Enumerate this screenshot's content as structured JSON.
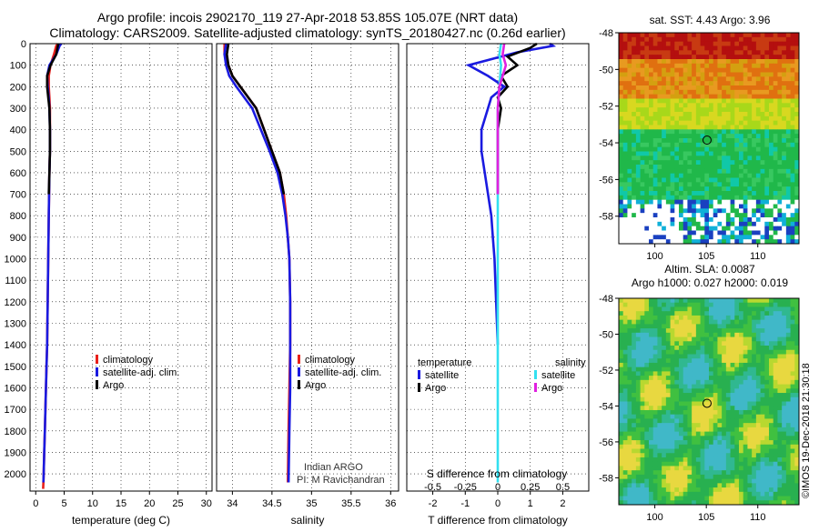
{
  "header": {
    "line1": "Argo profile: incois 2902170_119 27-Apr-2018 53.85S 105.07E (NRT data)",
    "line2": "Climatology: CARS2009. Satellite-adjusted climatology: synTS_20180427.nc (0.26d earlier)"
  },
  "colors": {
    "climatology": "#e8201a",
    "satellite": "#1a1ae0",
    "argo": "#000000",
    "sal_satellite": "#33e0f0",
    "sal_argo": "#e020e0"
  },
  "chart_data": [
    {
      "type": "line",
      "id": "temperature",
      "xlabel": "temperature (deg C)",
      "ylabel": "",
      "xlim": [
        -1,
        31
      ],
      "ylim": [
        2080,
        0
      ],
      "xticks": [
        0,
        5,
        10,
        15,
        20,
        25,
        30
      ],
      "yticks": [
        0,
        100,
        200,
        300,
        400,
        500,
        600,
        700,
        800,
        900,
        1000,
        1100,
        1200,
        1300,
        1400,
        1500,
        1600,
        1700,
        1800,
        1900,
        2000
      ],
      "legend": [
        "climatology",
        "satellite-adj. clim.",
        "Argo"
      ],
      "series": [
        {
          "name": "climatology",
          "x": [
            3.9,
            3.6,
            3.2,
            2.6,
            2.3,
            2.3,
            2.4,
            2.5,
            2.5,
            2.5,
            2.4,
            2.3,
            2.2,
            2.1,
            2.0,
            1.9,
            1.8,
            1.7,
            1.6,
            1.5,
            1.4,
            1.35,
            1.3
          ],
          "y": [
            0,
            10,
            50,
            100,
            150,
            200,
            250,
            300,
            400,
            500,
            600,
            800,
            1000,
            1200,
            1400,
            1500,
            1600,
            1700,
            1800,
            1900,
            2000,
            2040,
            2070
          ]
        },
        {
          "name": "satellite-adj. clim.",
          "x": [
            4.5,
            4.2,
            3.6,
            2.4,
            2.0,
            2.1,
            2.3,
            2.4,
            2.5,
            2.5,
            2.4,
            2.3,
            2.2,
            2.1,
            2.0,
            1.9,
            1.8,
            1.7,
            1.6,
            1.5,
            1.4,
            1.35
          ],
          "y": [
            0,
            10,
            50,
            100,
            150,
            200,
            250,
            300,
            400,
            500,
            600,
            800,
            1000,
            1200,
            1400,
            1500,
            1600,
            1700,
            1800,
            1900,
            2000,
            2040
          ]
        },
        {
          "name": "Argo",
          "x": [
            4.0,
            3.9,
            3.6,
            2.6,
            2.0,
            2.0,
            2.2,
            2.4,
            2.5,
            2.5,
            2.4,
            2.3
          ],
          "y": [
            0,
            10,
            50,
            100,
            150,
            200,
            250,
            300,
            400,
            500,
            600,
            700
          ]
        }
      ]
    },
    {
      "type": "line",
      "id": "salinity",
      "xlabel": "salinity",
      "xlim": [
        33.8,
        36.1
      ],
      "ylim": [
        2080,
        0
      ],
      "xticks": [
        34,
        34.5,
        35,
        35.5,
        36
      ],
      "legend": [
        "climatology",
        "satellite-adj. clim.",
        "Argo"
      ],
      "series": [
        {
          "name": "climatology",
          "x": [
            33.9,
            33.9,
            33.95,
            34.0,
            34.1,
            34.2,
            34.3,
            34.4,
            34.5,
            34.6,
            34.65,
            34.68,
            34.7,
            34.72,
            34.73,
            34.73,
            34.72,
            34.71,
            34.7
          ],
          "y": [
            0,
            50,
            100,
            150,
            200,
            250,
            300,
            400,
            500,
            600,
            700,
            800,
            900,
            1000,
            1200,
            1400,
            1600,
            1800,
            2040
          ]
        },
        {
          "name": "satellite-adj. clim.",
          "x": [
            33.92,
            33.9,
            33.92,
            33.96,
            34.05,
            34.15,
            34.25,
            34.36,
            34.47,
            34.57,
            34.63,
            34.67,
            34.7,
            34.72,
            34.73,
            34.73,
            34.73,
            34.72,
            34.71
          ],
          "y": [
            0,
            50,
            100,
            150,
            200,
            250,
            300,
            400,
            500,
            600,
            700,
            800,
            900,
            1000,
            1200,
            1400,
            1600,
            1800,
            2040
          ]
        },
        {
          "name": "Argo",
          "x": [
            33.95,
            33.93,
            33.95,
            34.0,
            34.1,
            34.2,
            34.3,
            34.4,
            34.5,
            34.6,
            34.65
          ],
          "y": [
            0,
            50,
            100,
            150,
            200,
            250,
            300,
            400,
            500,
            600,
            700
          ]
        }
      ]
    },
    {
      "type": "line",
      "id": "difference",
      "xlabel": "T difference from climatology",
      "xlabel_top": "S difference from climatology",
      "xlim": [
        -2.8,
        2.8
      ],
      "ylim": [
        2080,
        0
      ],
      "xticks": [
        -2,
        -1,
        0,
        1,
        2
      ],
      "xtick_labels": [
        "-2",
        "-1",
        "0",
        "1",
        "2"
      ],
      "sticks": [
        "-0.5",
        "-0.25",
        "0",
        "0.25",
        "0.5"
      ],
      "sticks_pos": [
        -2,
        -1,
        0,
        1,
        2
      ],
      "legend_left_title": "temperature",
      "legend_right_title": "salinity",
      "legend_left": [
        "satellite",
        "Argo"
      ],
      "legend_right": [
        "satellite",
        "Argo"
      ],
      "series": [
        {
          "name": "temp satellite",
          "x": [
            1.6,
            1.7,
            0.6,
            -0.9,
            -0.3,
            0.2,
            -0.2,
            -0.3,
            -0.5,
            -0.5,
            -0.4,
            -0.3,
            -0.2,
            -0.15,
            -0.1,
            -0.05,
            0
          ],
          "y": [
            0,
            10,
            40,
            100,
            150,
            200,
            250,
            300,
            400,
            500,
            600,
            700,
            800,
            900,
            1000,
            1200,
            1400
          ]
        },
        {
          "name": "temp Argo",
          "x": [
            1.2,
            1.0,
            0.3,
            0.6,
            0.1,
            0.3,
            0,
            0.1,
            0,
            0,
            0
          ],
          "y": [
            0,
            20,
            60,
            100,
            150,
            200,
            250,
            300,
            400,
            500,
            700
          ]
        },
        {
          "name": "sal satellite",
          "x": [
            0.1,
            0.05,
            0.1,
            0.05,
            0,
            0,
            0,
            0,
            0
          ],
          "y": [
            0,
            50,
            100,
            200,
            300,
            600,
            1000,
            1500,
            2040
          ]
        },
        {
          "name": "sal Argo",
          "x": [
            0.2,
            0.15,
            0.25,
            0.05,
            0,
            0,
            0
          ],
          "y": [
            0,
            50,
            100,
            200,
            300,
            500,
            700
          ]
        }
      ]
    }
  ],
  "credit": {
    "line1": "Indian ARGO",
    "line2": "PI: M Ravichandran"
  },
  "maps": {
    "sst_title": "sat. SST: 4.43 Argo: 3.96",
    "sla_title1": "Altim. SLA: 0.0087",
    "sla_title2": "Argo h1000: 0.027 h2000: 0.019",
    "lat_ticks": [
      "-48",
      "-50",
      "-52",
      "-54",
      "-56",
      "-58"
    ],
    "lon_ticks": [
      "100",
      "105",
      "110"
    ],
    "float_lat": -53.85,
    "float_lon": 105.07
  },
  "watermark": "©IMOS 19-Dec-2018 21:30:18"
}
